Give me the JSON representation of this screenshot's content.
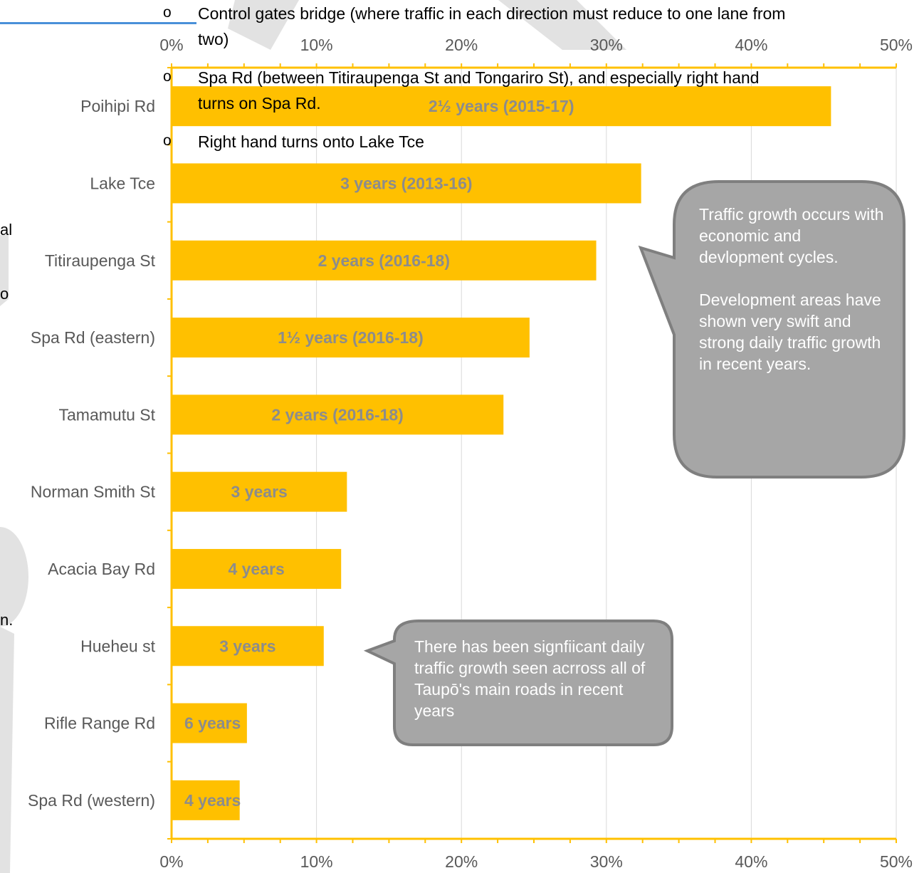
{
  "chart_data": {
    "type": "bar",
    "orientation": "horizontal",
    "categories": [
      "Poihipi Rd",
      "Lake Tce",
      "Titiraupenga St",
      "Spa Rd (eastern)",
      "Tamamutu St",
      "Norman Smith St",
      "Acacia Bay Rd",
      "Hueheu st",
      "Rifle Range Rd",
      "Spa Rd (western)"
    ],
    "values": [
      45.5,
      32.4,
      29.3,
      24.7,
      22.9,
      12.1,
      11.7,
      10.5,
      5.2,
      4.7
    ],
    "bar_labels": [
      "2½ years (2015-17)",
      "3 years (2013-16)",
      "2 years (2016-18)",
      "1½ years (2016-18)",
      "2 years (2016-18)",
      "3 years",
      "4 years",
      "3 years",
      "6 years",
      "4 years"
    ],
    "xlim": [
      0,
      50
    ],
    "xticks": [
      "0%",
      "10%",
      "20%",
      "30%",
      "40%",
      "50%"
    ],
    "grid": true,
    "colors": {
      "bar": "#FFC000",
      "bar_label": "#8C8C8C",
      "grid": "#D9D9D9",
      "axis": "#FFC000"
    }
  },
  "overlay_bullets": [
    {
      "symbol": "o",
      "text": "Control gates bridge (where traffic in each direction must reduce to one lane from"
    },
    {
      "symbol": "",
      "text": "two)"
    },
    {
      "symbol": "o",
      "text": "Spa Rd (between Titiraupenga St and Tongariro St), and especially right hand"
    },
    {
      "symbol": "",
      "text": "turns on Spa Rd."
    },
    {
      "symbol": "o",
      "text": "Right hand turns onto Lake Tce"
    }
  ],
  "left_fragments": [
    "al",
    "o",
    "n."
  ],
  "callouts": {
    "right": {
      "p1": "Traffic growth occurs with economic and devlopment cycles.",
      "p2": "Development areas have shown very swift and strong daily traffic growth in recent years."
    },
    "bottom": {
      "p1": "There has been signfiicant daily traffic growth seen acrross all of Taupō's main roads in recent years"
    }
  }
}
